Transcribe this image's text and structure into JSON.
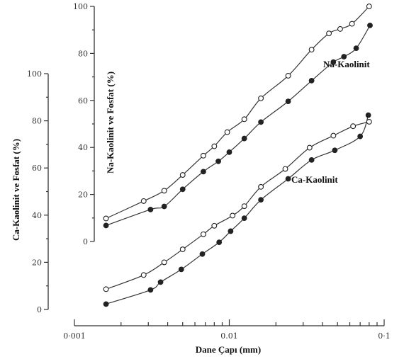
{
  "chart_data": {
    "type": "line",
    "x_scale": "log",
    "xlabel": "Dane Çapı (mm)",
    "xlim": [
      0.001,
      0.1
    ],
    "x_ticks": [
      {
        "value": 0.001,
        "label": "0·001"
      },
      {
        "value": 0.01,
        "label": "0.01"
      },
      {
        "value": 0.1,
        "label": "0·1"
      }
    ],
    "panels": [
      {
        "key": "ca",
        "ylabel": "Ca-Kaolinit ve Fosfat  (%)",
        "ylim": [
          0,
          100
        ],
        "y_ticks": [
          {
            "value": 0,
            "label": "0"
          },
          {
            "value": 20,
            "label": "20"
          },
          {
            "value": 40,
            "label": "40"
          },
          {
            "value": 60,
            "label": "60"
          },
          {
            "value": 80,
            "label": "80"
          },
          {
            "value": 100,
            "label": "100"
          }
        ],
        "series_label": "Ca-Kaolinit",
        "series": [
          {
            "marker": "open",
            "x": [
              0.0016,
              0.0028,
              0.0038,
              0.005,
              0.0068,
              0.008,
              0.0105,
              0.0125,
              0.016,
              0.023,
              0.033,
              0.047,
              0.063,
              0.08
            ],
            "y": [
              8.6,
              14.6,
              20.0,
              25.5,
              31.9,
              35.5,
              39.8,
              43.8,
              52.0,
              59.6,
              68.6,
              73.7,
              77.7,
              79.6
            ]
          },
          {
            "marker": "filled",
            "x": [
              0.0016,
              0.0031,
              0.0036,
              0.0049,
              0.0067,
              0.0086,
              0.0102,
              0.0125,
              0.016,
              0.024,
              0.034,
              0.048,
              0.07,
              0.079
            ],
            "y": [
              2.3,
              8.3,
              11.6,
              17.0,
              23.5,
              28.5,
              33.2,
              38.7,
              46.5,
              55.4,
              63.4,
              67.5,
              73.4,
              82.4
            ]
          }
        ]
      },
      {
        "key": "na",
        "ylabel": "Na-Kaolinit ve Fosfat (%)",
        "ylim": [
          0,
          100
        ],
        "y_ticks": [
          {
            "value": 0,
            "label": "0"
          },
          {
            "value": 20,
            "label": "20"
          },
          {
            "value": 40,
            "label": "40"
          },
          {
            "value": 60,
            "label": "60"
          },
          {
            "value": 80,
            "label": "80"
          },
          {
            "value": 100,
            "label": "100"
          }
        ],
        "series_label": "Na-Kaolinit",
        "series": [
          {
            "marker": "open",
            "x": [
              0.0016,
              0.0028,
              0.0038,
              0.005,
              0.0068,
              0.008,
              0.0097,
              0.0125,
              0.016,
              0.024,
              0.034,
              0.044,
              0.052,
              0.062,
              0.08
            ],
            "y": [
              9.8,
              17.2,
              21.6,
              28.3,
              36.5,
              40.5,
              46.5,
              52.0,
              60.9,
              70.5,
              81.6,
              88.5,
              90.4,
              92.6,
              100.0
            ]
          },
          {
            "marker": "filled",
            "x": [
              0.0016,
              0.0031,
              0.0038,
              0.005,
              0.0068,
              0.0085,
              0.01,
              0.0125,
              0.016,
              0.024,
              0.034,
              0.047,
              0.055,
              0.066,
              0.081
            ],
            "y": [
              6.8,
              13.6,
              14.9,
              22.2,
              29.7,
              34.1,
              38.0,
              43.8,
              50.8,
              59.6,
              68.4,
              76.3,
              78.6,
              82.2,
              91.9
            ]
          }
        ]
      }
    ]
  }
}
